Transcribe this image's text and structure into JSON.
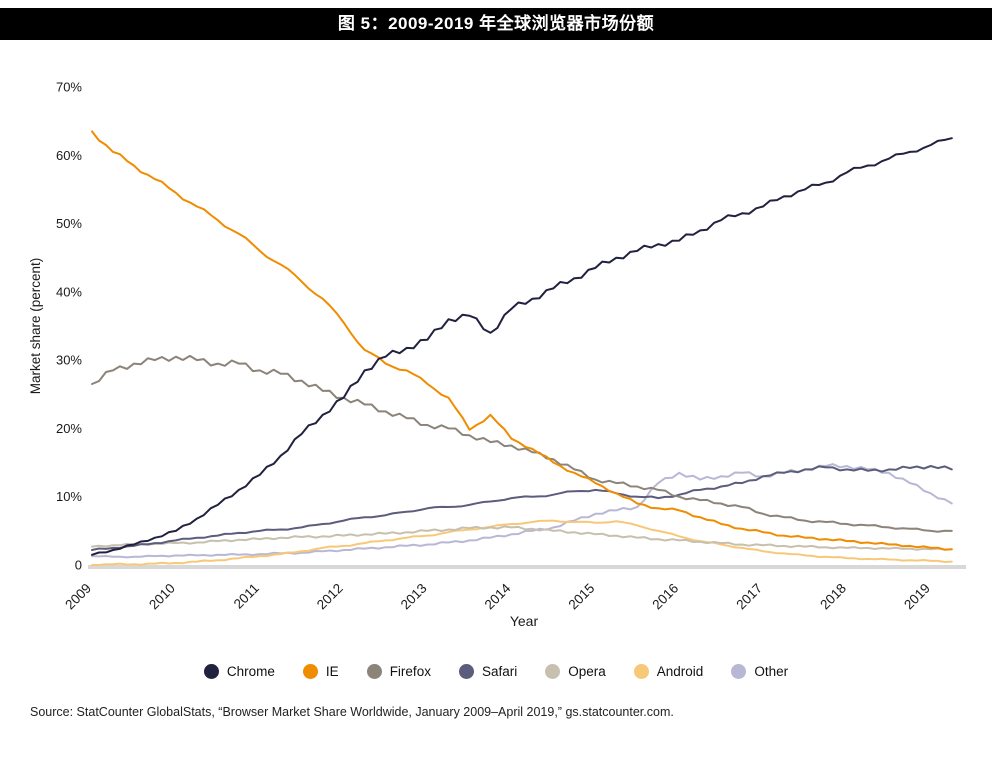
{
  "title_bar": {
    "text": "图 5：2009-2019 年全球浏览器市场份额",
    "bg": "#000000",
    "fg": "#ffffff"
  },
  "source_note": "Source: StatCounter GlobalStats, “Browser Market Share Worldwide, January 2009–April 2019,” gs.statcounter.com.",
  "chart_data": {
    "type": "line",
    "title": "",
    "xlabel": "Year",
    "ylabel": "Market share (percent)",
    "xlim": [
      2009,
      2019.3
    ],
    "ylim": [
      0,
      70
    ],
    "grid": false,
    "legend_position": "bottom",
    "x_ticks": [
      2009,
      2010,
      2011,
      2012,
      2013,
      2014,
      2015,
      2016,
      2017,
      2018,
      2019
    ],
    "y_ticks": [
      0,
      10,
      20,
      30,
      40,
      50,
      60,
      70
    ],
    "y_tick_labels": [
      "0",
      "10%",
      "20%",
      "30%",
      "40%",
      "50%",
      "60%",
      "70%"
    ],
    "axis_baseline_color": "#d8d8d8",
    "x": [
      2009,
      2009.25,
      2009.5,
      2009.75,
      2010,
      2010.25,
      2010.5,
      2010.75,
      2011,
      2011.25,
      2011.5,
      2011.75,
      2012,
      2012.25,
      2012.5,
      2012.75,
      2013,
      2013.25,
      2013.5,
      2013.75,
      2014,
      2014.25,
      2014.5,
      2014.75,
      2015,
      2015.25,
      2015.5,
      2015.75,
      2016,
      2016.25,
      2016.5,
      2016.75,
      2017,
      2017.25,
      2017.5,
      2017.75,
      2018,
      2018.25,
      2018.5,
      2018.75,
      2019,
      2019.25
    ],
    "series": [
      {
        "name": "Chrome",
        "color": "#212140",
        "values": [
          1.5,
          2.2,
          3,
          4,
          5,
          6.8,
          8.8,
          11,
          13.2,
          16,
          19.2,
          22,
          24.5,
          28.5,
          30.5,
          31.8,
          33,
          36,
          36.5,
          34,
          37.5,
          39,
          40.5,
          42,
          43.5,
          45,
          46,
          47,
          47.5,
          49,
          50.5,
          51.5,
          52.5,
          54,
          55,
          56,
          57.5,
          58.5,
          59.5,
          60.5,
          61.5,
          62.5
        ]
      },
      {
        "name": "IE",
        "color": "#f08c00",
        "values": [
          63.5,
          60.5,
          58.5,
          56.5,
          54.5,
          52.5,
          50.5,
          48.5,
          46,
          44,
          41.5,
          39,
          35.5,
          31.5,
          29.5,
          28.5,
          26.5,
          24.5,
          19.8,
          22,
          18.5,
          17,
          15,
          13.5,
          12,
          10.5,
          9,
          8.3,
          8,
          7,
          6,
          5.3,
          4.8,
          4.3,
          4,
          3.8,
          3.5,
          3.3,
          3,
          2.8,
          2.5,
          2.3
        ]
      },
      {
        "name": "Firefox",
        "color": "#8c8478",
        "values": [
          26.5,
          28.5,
          29.5,
          30,
          30.5,
          30,
          29.5,
          29.5,
          28.5,
          28,
          27,
          25.5,
          24.5,
          23.5,
          22.5,
          21.5,
          20.5,
          20,
          19,
          18,
          17.5,
          16.5,
          15.5,
          14,
          12.5,
          12,
          11.5,
          11,
          10,
          9.5,
          9,
          8.5,
          7.5,
          7,
          6.5,
          6.3,
          6,
          5.8,
          5.5,
          5.3,
          5,
          5
        ]
      },
      {
        "name": "Safari",
        "color": "#5c5c7d",
        "values": [
          2.2,
          2.5,
          2.8,
          3.2,
          3.6,
          4,
          4.3,
          4.7,
          5,
          5.2,
          5.5,
          6,
          6.5,
          7,
          7.3,
          7.8,
          8.3,
          8.5,
          8.8,
          9.3,
          9.8,
          10,
          10.3,
          10.8,
          11,
          10.5,
          10,
          9.8,
          10.3,
          11,
          11.5,
          12,
          13,
          13.5,
          14,
          14.3,
          14,
          13.8,
          14,
          14.2,
          14.5,
          14
        ]
      },
      {
        "name": "Opera",
        "color": "#c8c0ae",
        "values": [
          2.7,
          2.9,
          3,
          3.1,
          3.2,
          3.3,
          3.5,
          3.7,
          3.8,
          4,
          4.1,
          4.2,
          4.3,
          4.5,
          4.6,
          4.8,
          5,
          5.2,
          5.4,
          5.5,
          5.5,
          5.3,
          5,
          4.8,
          4.5,
          4.3,
          4,
          3.8,
          3.6,
          3.4,
          3.2,
          3,
          2.9,
          2.8,
          2.7,
          2.6,
          2.5,
          2.5,
          2.4,
          2.4,
          2.3,
          2.3
        ]
      },
      {
        "name": "Android",
        "color": "#f7c878",
        "values": [
          0,
          0.1,
          0.1,
          0.2,
          0.3,
          0.5,
          0.7,
          1,
          1.3,
          1.6,
          2,
          2.5,
          2.8,
          3.2,
          3.6,
          4,
          4.3,
          4.8,
          5.2,
          5.6,
          6,
          6.3,
          6.5,
          6.3,
          6.2,
          6.4,
          5.8,
          5,
          4.2,
          3.5,
          3,
          2.5,
          2,
          1.7,
          1.4,
          1.2,
          1,
          0.9,
          0.8,
          0.7,
          0.6,
          0.5
        ]
      },
      {
        "name": "Other",
        "color": "#b8b8d6",
        "values": [
          1.3,
          1.2,
          1.2,
          1.3,
          1.4,
          1.4,
          1.5,
          1.5,
          1.6,
          1.7,
          1.8,
          2,
          2.2,
          2.4,
          2.6,
          2.8,
          3,
          3.3,
          3.6,
          4,
          4.5,
          5,
          5.5,
          6.5,
          7.5,
          8,
          8.5,
          12,
          13.5,
          12.5,
          13,
          13.5,
          13,
          13.5,
          14,
          14.5,
          14.5,
          14,
          13.5,
          12,
          10.5,
          9
        ]
      }
    ]
  }
}
